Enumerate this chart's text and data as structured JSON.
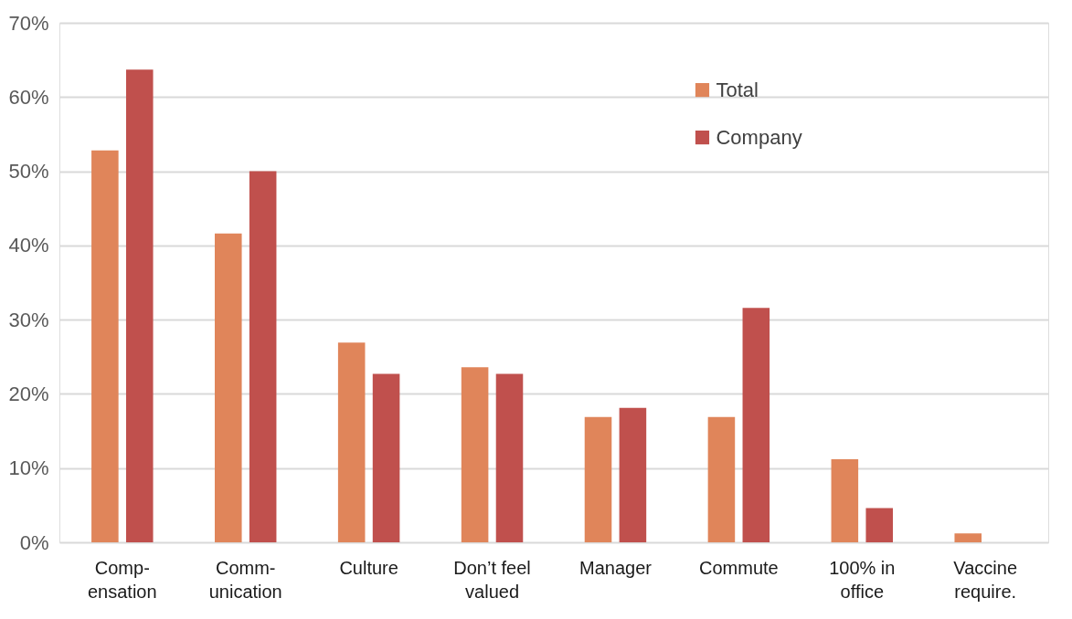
{
  "chart_data": {
    "type": "bar",
    "categories": [
      "Comp-\nensation",
      "Comm-\nunication",
      "Culture",
      "Don’t feel\nvalued",
      "Manager",
      "Commute",
      "100% in\noffice",
      "Vaccine\nrequire."
    ],
    "series": [
      {
        "name": "Total",
        "color": "#e0855a",
        "values": [
          52.8,
          41.6,
          26.9,
          23.6,
          16.9,
          16.9,
          11.2,
          1.2
        ]
      },
      {
        "name": "Company",
        "color": "#c0504d",
        "values": [
          63.7,
          50.0,
          22.7,
          22.7,
          18.1,
          31.6,
          4.6,
          null
        ]
      }
    ],
    "ylim": [
      0,
      70
    ],
    "yticks": [
      {
        "value": 0,
        "label": "0%"
      },
      {
        "value": 10,
        "label": "10%"
      },
      {
        "value": 20,
        "label": "20%"
      },
      {
        "value": 30,
        "label": "30%"
      },
      {
        "value": 40,
        "label": "40%"
      },
      {
        "value": 50,
        "label": "50%"
      },
      {
        "value": 60,
        "label": "60%"
      },
      {
        "value": 70,
        "label": "70%"
      }
    ],
    "grid": "y",
    "legend": "top right"
  }
}
